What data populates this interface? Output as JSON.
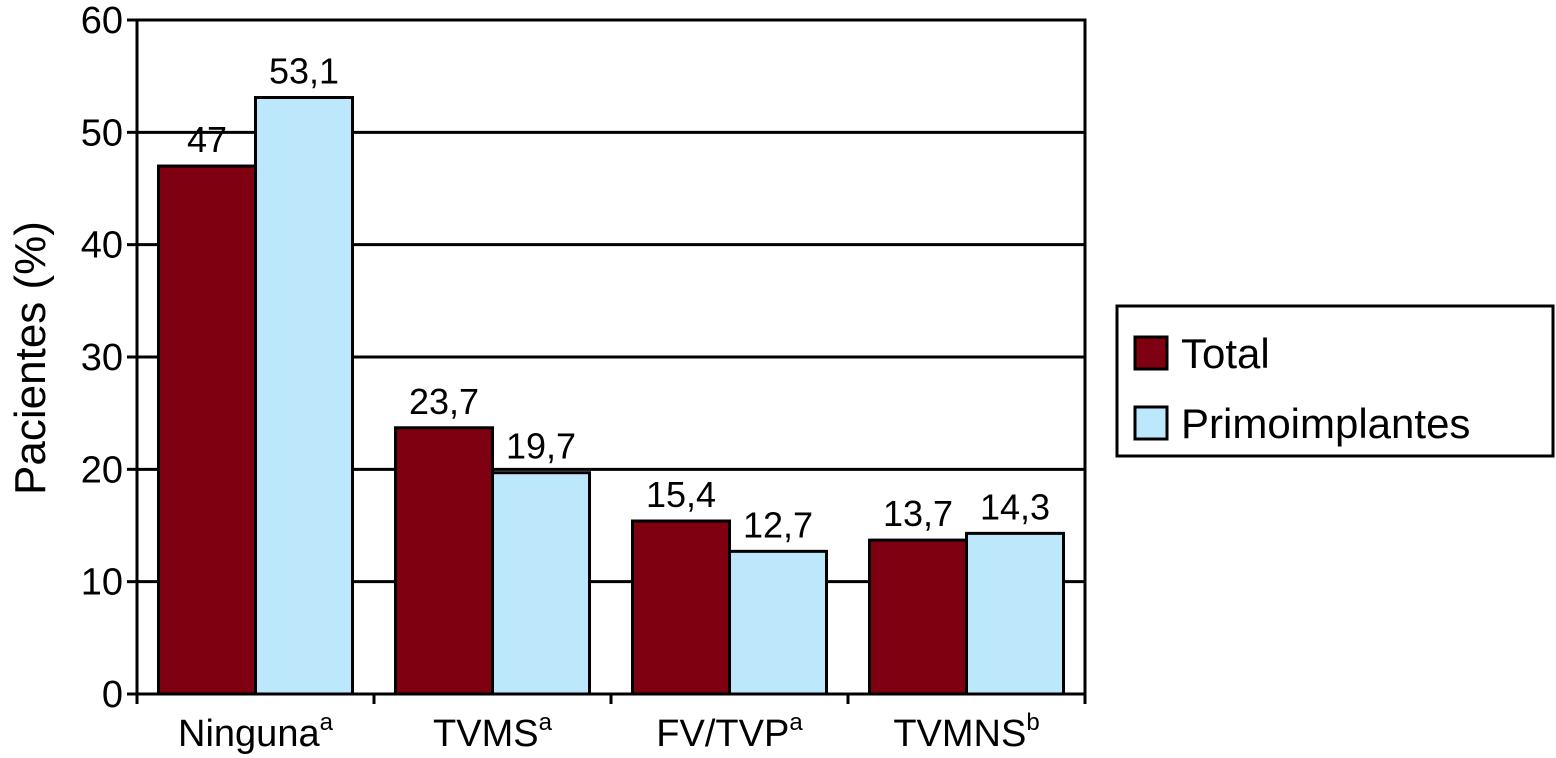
{
  "chart_data": {
    "type": "bar",
    "ylabel": "Pacientes (%)",
    "ylim": [
      0,
      60
    ],
    "yticks": [
      0,
      10,
      20,
      30,
      40,
      50,
      60
    ],
    "grid": true,
    "legend_position": "right",
    "categories": [
      {
        "label": "Ninguna",
        "sup": "a"
      },
      {
        "label": "TVMS",
        "sup": "a"
      },
      {
        "label": "FV/TVP",
        "sup": "a"
      },
      {
        "label": "TVMNS",
        "sup": "b"
      }
    ],
    "series": [
      {
        "name": "Total",
        "color": "#7f0010",
        "values": [
          47,
          23.7,
          15.4,
          13.7
        ],
        "labels": [
          "47",
          "23,7",
          "15,4",
          "13,7"
        ]
      },
      {
        "name": "Primoimplantes",
        "color": "#bde8fb",
        "values": [
          53.1,
          19.7,
          12.7,
          14.3
        ],
        "labels": [
          "53,1",
          "19,7",
          "12,7",
          "14,3"
        ]
      }
    ]
  }
}
